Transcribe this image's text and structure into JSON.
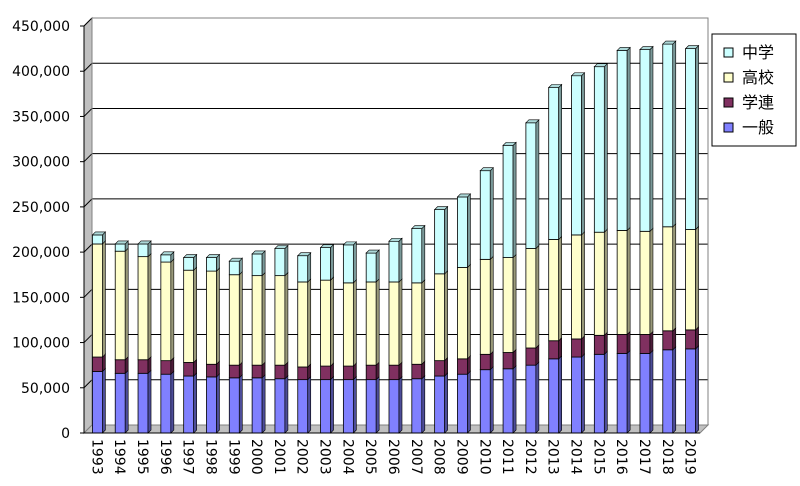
{
  "chart_data": {
    "type": "bar",
    "stacked": true,
    "categories": [
      "1993",
      "1994",
      "1995",
      "1996",
      "1997",
      "1998",
      "1999",
      "2000",
      "2001",
      "2002",
      "2003",
      "2004",
      "2005",
      "2006",
      "2007",
      "2008",
      "2009",
      "2010",
      "2011",
      "2012",
      "2013",
      "2014",
      "2015",
      "2016",
      "2017",
      "2018",
      "2019"
    ],
    "series": [
      {
        "name": "一般",
        "color": "#8080ff",
        "values": [
          68000,
          66000,
          66000,
          65000,
          63000,
          62000,
          61000,
          61000,
          60000,
          59000,
          59000,
          59000,
          59000,
          59000,
          60000,
          63000,
          65000,
          70000,
          71000,
          75000,
          82000,
          84000,
          87000,
          88000,
          88000,
          92000,
          93000
        ]
      },
      {
        "name": "学連",
        "color": "#803060",
        "values": [
          16000,
          15000,
          15000,
          15000,
          15000,
          14000,
          14000,
          14000,
          15000,
          14000,
          15000,
          15000,
          16000,
          16000,
          16000,
          17000,
          17000,
          17000,
          18000,
          19000,
          20000,
          20000,
          21000,
          21000,
          21000,
          21000,
          21000
        ]
      },
      {
        "name": "高校",
        "color": "#ffffcc",
        "values": [
          125000,
          120000,
          114000,
          109000,
          102000,
          103000,
          100000,
          99000,
          99000,
          94000,
          95000,
          92000,
          92000,
          92000,
          90000,
          96000,
          101000,
          105000,
          105000,
          110000,
          112000,
          115000,
          114000,
          115000,
          114000,
          115000,
          111000
        ]
      },
      {
        "name": "中学",
        "color": "#ccffff",
        "values": [
          10000,
          8000,
          14000,
          8000,
          14000,
          15000,
          15000,
          24000,
          30000,
          29000,
          36000,
          42000,
          32000,
          45000,
          60000,
          71000,
          78000,
          98000,
          124000,
          139000,
          168000,
          176000,
          183000,
          199000,
          201000,
          202000,
          200000
        ]
      }
    ],
    "y_ticks": [
      "0",
      "50,000",
      "100,000",
      "150,000",
      "200,000",
      "250,000",
      "300,000",
      "350,000",
      "400,000",
      "450,000"
    ],
    "ylim": [
      0,
      450000
    ],
    "grid": true,
    "legend": "right",
    "legend_order": [
      "中学",
      "高校",
      "学連",
      "一般"
    ],
    "title": "",
    "xlabel": "",
    "ylabel": ""
  }
}
